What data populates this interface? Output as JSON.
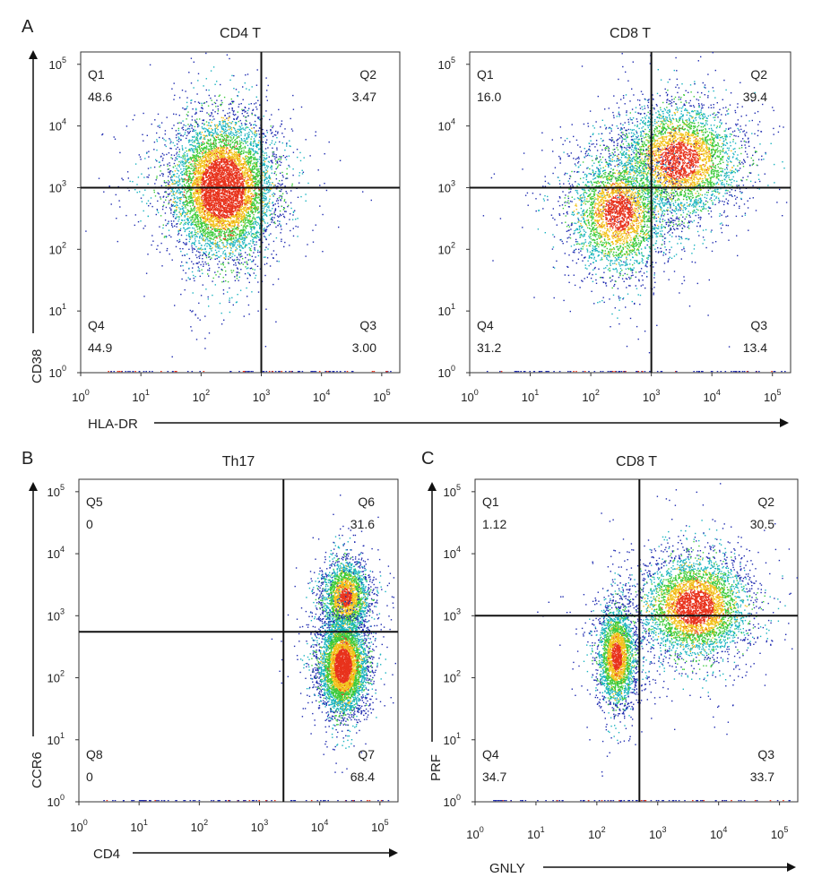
{
  "panels": [
    {
      "letter": "A"
    },
    {
      "letter": "B"
    },
    {
      "letter": "C"
    }
  ],
  "axis_arrows": {
    "A_y": "CD38",
    "A_x": "HLA-DR",
    "B_y": "CCR6",
    "B_x": "CD4",
    "C_y": "PRF",
    "C_x": "GNLY"
  },
  "colors": {
    "density_low": "#1f2bb0",
    "density_mid": "#19b3c0",
    "density_high": "#3ccb3c",
    "density_peak": "#f2c21b",
    "density_max": "#e8321c",
    "gate_line": "#111111"
  },
  "chart_data": [
    {
      "id": "A1",
      "type": "scatter",
      "title": "CD4 T",
      "xlabel": "HLA-DR",
      "ylabel": "CD38",
      "scale": "log10",
      "xlim": [
        0,
        5.3
      ],
      "ylim": [
        0,
        5.2
      ],
      "xticks": [
        "10^0",
        "10^1",
        "10^2",
        "10^3",
        "10^4",
        "10^5"
      ],
      "yticks": [
        "10^0",
        "10^1",
        "10^2",
        "10^3",
        "10^4",
        "10^5"
      ],
      "gate": {
        "x": 1000,
        "y": 1000
      },
      "quadrants": [
        {
          "name": "Q1",
          "value": "48.6",
          "corner": "top-left"
        },
        {
          "name": "Q2",
          "value": "3.47",
          "corner": "top-right"
        },
        {
          "name": "Q3",
          "value": "3.00",
          "corner": "bottom-right"
        },
        {
          "name": "Q4",
          "value": "44.9",
          "corner": "bottom-left"
        }
      ],
      "populations": [
        {
          "center_log10": [
            2.35,
            3.0
          ],
          "spread_log10": [
            0.42,
            0.55
          ],
          "fraction": 1.0
        }
      ]
    },
    {
      "id": "A2",
      "type": "scatter",
      "title": "CD8 T",
      "xlabel": "HLA-DR",
      "ylabel": "CD38",
      "scale": "log10",
      "xlim": [
        0,
        5.3
      ],
      "ylim": [
        0,
        5.2
      ],
      "xticks": [
        "10^0",
        "10^1",
        "10^2",
        "10^3",
        "10^4",
        "10^5"
      ],
      "yticks": [
        "10^0",
        "10^1",
        "10^2",
        "10^3",
        "10^4",
        "10^5"
      ],
      "gate": {
        "x": 1000,
        "y": 1000
      },
      "quadrants": [
        {
          "name": "Q1",
          "value": "16.0",
          "corner": "top-left"
        },
        {
          "name": "Q2",
          "value": "39.4",
          "corner": "top-right"
        },
        {
          "name": "Q3",
          "value": "13.4",
          "corner": "bottom-right"
        },
        {
          "name": "Q4",
          "value": "31.2",
          "corner": "bottom-left"
        }
      ],
      "populations": [
        {
          "center_log10": [
            3.45,
            3.45
          ],
          "spread_log10": [
            0.5,
            0.45
          ],
          "fraction": 0.55
        },
        {
          "center_log10": [
            2.45,
            2.6
          ],
          "spread_log10": [
            0.4,
            0.5
          ],
          "fraction": 0.45
        }
      ]
    },
    {
      "id": "B",
      "type": "scatter",
      "title": "Th17",
      "xlabel": "CD4",
      "ylabel": "CCR6",
      "scale": "log10",
      "xlim": [
        0,
        5.3
      ],
      "ylim": [
        0,
        5.2
      ],
      "xticks": [
        "10^0",
        "10^1",
        "10^2",
        "10^3",
        "10^4",
        "10^5"
      ],
      "yticks": [
        "10^0",
        "10^1",
        "10^2",
        "10^3",
        "10^4",
        "10^5"
      ],
      "gate": {
        "x": 2500,
        "y": 550
      },
      "quadrants": [
        {
          "name": "Q5",
          "value": "0",
          "corner": "top-left"
        },
        {
          "name": "Q6",
          "value": "31.6",
          "corner": "top-right"
        },
        {
          "name": "Q7",
          "value": "68.4",
          "corner": "bottom-right"
        },
        {
          "name": "Q8",
          "value": "0",
          "corner": "bottom-left"
        }
      ],
      "populations": [
        {
          "center_log10": [
            4.42,
            3.3
          ],
          "spread_log10": [
            0.2,
            0.3
          ],
          "fraction": 0.34
        },
        {
          "center_log10": [
            4.38,
            2.2
          ],
          "spread_log10": [
            0.2,
            0.38
          ],
          "fraction": 0.66
        }
      ]
    },
    {
      "id": "C",
      "type": "scatter",
      "title": "CD8 T",
      "xlabel": "GNLY",
      "ylabel": "PRF",
      "scale": "log10",
      "xlim": [
        0,
        5.3
      ],
      "ylim": [
        0,
        5.2
      ],
      "xticks": [
        "10^0",
        "10^1",
        "10^2",
        "10^3",
        "10^4",
        "10^5"
      ],
      "yticks": [
        "10^0",
        "10^1",
        "10^2",
        "10^3",
        "10^4",
        "10^5"
      ],
      "gate": {
        "x": 500,
        "y": 1000
      },
      "quadrants": [
        {
          "name": "Q1",
          "value": "1.12",
          "corner": "top-left"
        },
        {
          "name": "Q2",
          "value": "30.5",
          "corner": "top-right"
        },
        {
          "name": "Q3",
          "value": "33.7",
          "corner": "bottom-right"
        },
        {
          "name": "Q4",
          "value": "34.7",
          "corner": "bottom-left"
        }
      ],
      "populations": [
        {
          "center_log10": [
            3.6,
            3.15
          ],
          "spread_log10": [
            0.45,
            0.4
          ],
          "fraction": 0.62
        },
        {
          "center_log10": [
            2.32,
            2.35
          ],
          "spread_log10": [
            0.16,
            0.4
          ],
          "fraction": 0.38
        }
      ]
    }
  ]
}
